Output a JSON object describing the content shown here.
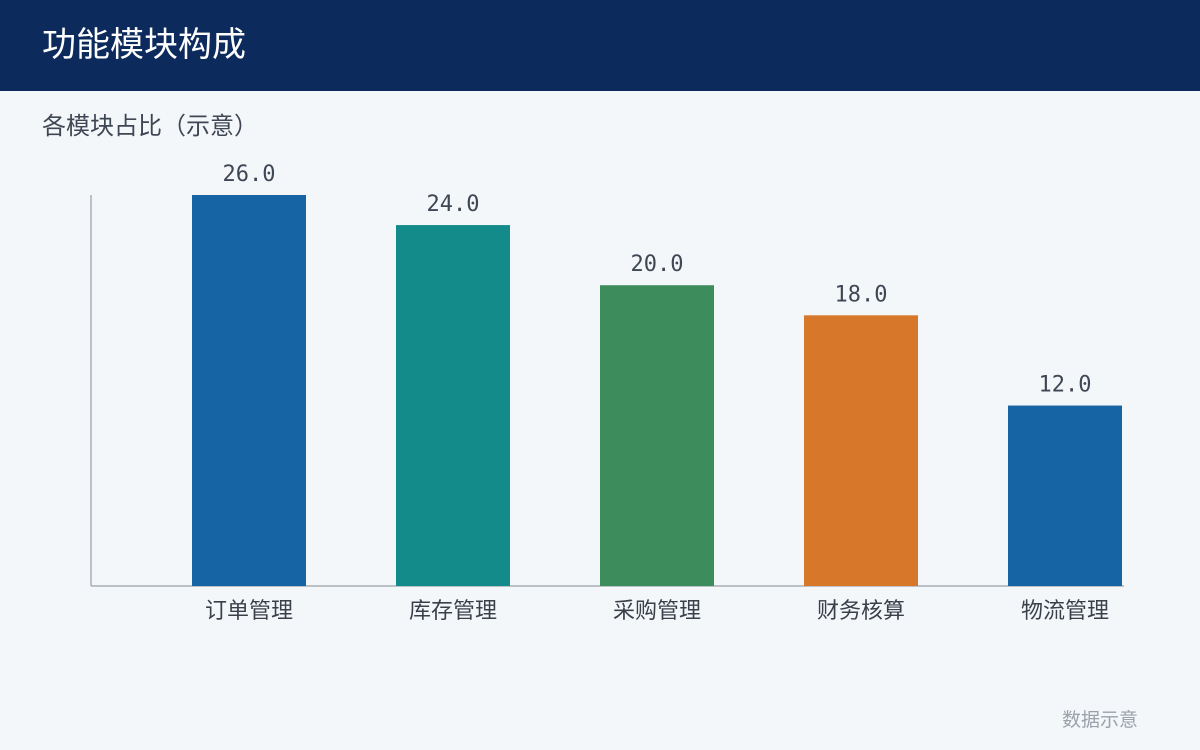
{
  "header": {
    "title": "功能模块构成"
  },
  "chart_data": {
    "type": "bar",
    "title": "各模块占比（示意）",
    "categories": [
      "订单管理",
      "库存管理",
      "采购管理",
      "财务核算",
      "物流管理"
    ],
    "values": [
      26.0,
      24.0,
      20.0,
      18.0,
      12.0
    ],
    "value_labels": [
      "26.0",
      "24.0",
      "20.0",
      "18.0",
      "12.0"
    ],
    "colors": [
      "#1664a3",
      "#138b8a",
      "#3c8c5c",
      "#d6772a",
      "#1664a3"
    ],
    "ylim": [
      0,
      26
    ],
    "xlabel": "",
    "ylabel": "",
    "grid": false,
    "legend": "none"
  },
  "footnote": "数据示意"
}
